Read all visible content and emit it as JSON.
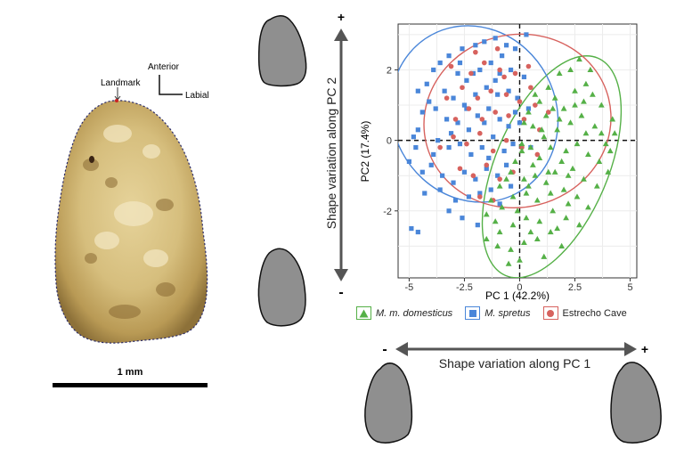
{
  "tooth": {
    "landmark_label": "Landmark",
    "anterior_label": "Anterior",
    "labial_label": "Labial",
    "scale_bar_label": "1 mm"
  },
  "axes_arrows": {
    "pc2_text": "Shape variation along PC 2",
    "pc1_text": "Shape variation along PC 1",
    "plus_sign": "+",
    "minus_sign": "-"
  },
  "chart_data": {
    "type": "scatter",
    "xlabel": "PC 1 (42.2%)",
    "ylabel": "PC2 (17.4%)",
    "xlim": [
      -5.5,
      5.3
    ],
    "ylim": [
      -3.9,
      3.3
    ],
    "xticks": [
      -5,
      -2.5,
      0,
      2.5,
      5
    ],
    "yticks": [
      -2,
      0,
      2
    ],
    "xtick_labels": [
      "-5",
      "-2.5",
      "0",
      "2.5",
      "5"
    ],
    "ytick_labels": [
      "-2",
      "0",
      "2"
    ],
    "grid": true,
    "reference_lines": {
      "x": 0,
      "y": 0,
      "style": "dashed"
    },
    "legend_position": "bottom",
    "series": [
      {
        "name": "M. m. domesticus",
        "marker": "triangle",
        "color": "#55b047",
        "ellipse": {
          "cx": 1.45,
          "cy": -0.75,
          "rx": 2.55,
          "ry": 3.35,
          "angle_deg": 23
        },
        "points": [
          [
            0.4,
            0.8
          ],
          [
            0.9,
            1.1
          ],
          [
            1.3,
            1.5
          ],
          [
            1.8,
            1.9
          ],
          [
            2.3,
            2.0
          ],
          [
            2.7,
            2.3
          ],
          [
            3.2,
            2.0
          ],
          [
            3.0,
            1.6
          ],
          [
            2.5,
            1.4
          ],
          [
            1.2,
            0.7
          ],
          [
            0.6,
            0.4
          ],
          [
            1.6,
            1.2
          ],
          [
            2.0,
            0.9
          ],
          [
            3.3,
            1.3
          ],
          [
            3.7,
            1.0
          ],
          [
            4.2,
            0.6
          ],
          [
            4.3,
            0.2
          ],
          [
            3.9,
            -0.1
          ],
          [
            3.4,
            0.4
          ],
          [
            2.8,
            0.7
          ],
          [
            2.3,
            0.5
          ],
          [
            1.7,
            0.3
          ],
          [
            1.1,
            0.1
          ],
          [
            0.5,
            -0.2
          ],
          [
            0.1,
            -0.3
          ],
          [
            0.9,
            -0.5
          ],
          [
            1.4,
            -0.2
          ],
          [
            2.1,
            -0.3
          ],
          [
            2.6,
            -0.1
          ],
          [
            3.1,
            -0.4
          ],
          [
            3.6,
            -0.6
          ],
          [
            4.0,
            -0.9
          ],
          [
            3.5,
            -1.3
          ],
          [
            2.9,
            -1.1
          ],
          [
            2.4,
            -0.8
          ],
          [
            1.9,
            -0.6
          ],
          [
            1.3,
            -0.9
          ],
          [
            0.7,
            -1.0
          ],
          [
            0.2,
            -1.1
          ],
          [
            -0.4,
            -0.9
          ],
          [
            -0.9,
            -1.3
          ],
          [
            -1.3,
            -1.7
          ],
          [
            -1.5,
            -2.1
          ],
          [
            -0.8,
            -1.9
          ],
          [
            -0.3,
            -1.6
          ],
          [
            0.3,
            -1.5
          ],
          [
            0.8,
            -1.7
          ],
          [
            1.4,
            -1.5
          ],
          [
            2.0,
            -1.4
          ],
          [
            2.6,
            -1.6
          ],
          [
            3.1,
            -1.9
          ],
          [
            2.7,
            -2.4
          ],
          [
            2.1,
            -2.2
          ],
          [
            1.5,
            -2.0
          ],
          [
            0.9,
            -2.3
          ],
          [
            0.3,
            -2.2
          ],
          [
            -0.3,
            -2.4
          ],
          [
            -0.9,
            -2.6
          ],
          [
            -1.5,
            -2.8
          ],
          [
            -1.0,
            -3.0
          ],
          [
            -0.4,
            -3.1
          ],
          [
            0.2,
            -2.9
          ],
          [
            0.8,
            -2.8
          ],
          [
            1.4,
            -2.6
          ],
          [
            1.9,
            -3.0
          ],
          [
            0.0,
            -3.4
          ],
          [
            1.1,
            -3.3
          ],
          [
            -0.5,
            -3.5
          ],
          [
            1.6,
            -0.9
          ],
          [
            2.2,
            -1.0
          ],
          [
            0.6,
            -0.7
          ],
          [
            1.0,
            0.3
          ],
          [
            0.2,
            0.5
          ],
          [
            -0.2,
            -0.6
          ],
          [
            1.8,
            0.6
          ],
          [
            2.5,
            1.0
          ],
          [
            3.0,
            0.2
          ],
          [
            2.2,
            -1.8
          ],
          [
            1.2,
            -1.2
          ],
          [
            -0.1,
            -2.0
          ],
          [
            0.5,
            -2.6
          ],
          [
            0.1,
            -0.1
          ],
          [
            0.7,
            1.3
          ],
          [
            1.5,
            0.9
          ],
          [
            2.9,
            1.1
          ],
          [
            3.7,
            0.2
          ],
          [
            4.1,
            -0.3
          ],
          [
            -1.1,
            -2.3
          ],
          [
            1.7,
            -2.5
          ],
          [
            0.4,
            -1.3
          ],
          [
            -0.6,
            -1.1
          ]
        ]
      },
      {
        "name": "M. spretus",
        "marker": "square",
        "color": "#4a86d9",
        "ellipse": {
          "cx": -2.05,
          "cy": 0.75,
          "rx": 3.7,
          "ry": 2.55,
          "angle_deg": -28
        },
        "points": [
          [
            -4.9,
            -2.5
          ],
          [
            -4.6,
            -2.6
          ],
          [
            -4.3,
            -1.5
          ],
          [
            -5.0,
            -0.6
          ],
          [
            -4.7,
            -0.2
          ],
          [
            -4.6,
            0.3
          ],
          [
            -4.4,
            0.8
          ],
          [
            -4.6,
            1.4
          ],
          [
            -4.2,
            1.6
          ],
          [
            -3.9,
            2.0
          ],
          [
            -3.6,
            2.2
          ],
          [
            -3.2,
            2.4
          ],
          [
            -2.6,
            2.6
          ],
          [
            -2.0,
            2.7
          ],
          [
            -1.6,
            2.8
          ],
          [
            -1.1,
            2.9
          ],
          [
            -0.6,
            2.7
          ],
          [
            -0.2,
            2.6
          ],
          [
            0.3,
            3.0
          ],
          [
            -2.8,
            1.9
          ],
          [
            -2.4,
            1.7
          ],
          [
            -1.8,
            2.0
          ],
          [
            -1.3,
            2.2
          ],
          [
            -0.9,
            1.9
          ],
          [
            -0.4,
            2.0
          ],
          [
            -3.4,
            1.4
          ],
          [
            -3.0,
            1.2
          ],
          [
            -2.5,
            1.0
          ],
          [
            -2.0,
            1.3
          ],
          [
            -1.5,
            1.5
          ],
          [
            -1.0,
            1.3
          ],
          [
            -0.5,
            1.4
          ],
          [
            -0.1,
            1.2
          ],
          [
            -3.8,
            0.9
          ],
          [
            -3.3,
            0.6
          ],
          [
            -2.8,
            0.5
          ],
          [
            -2.3,
            0.3
          ],
          [
            -1.9,
            0.7
          ],
          [
            -1.4,
            0.9
          ],
          [
            -0.9,
            0.6
          ],
          [
            -0.5,
            0.4
          ],
          [
            0.0,
            0.5
          ],
          [
            0.4,
            0.9
          ],
          [
            -3.7,
            0.0
          ],
          [
            -3.2,
            -0.2
          ],
          [
            -2.7,
            -0.1
          ],
          [
            -2.2,
            -0.4
          ],
          [
            -1.7,
            -0.2
          ],
          [
            -1.2,
            0.1
          ],
          [
            -0.7,
            -0.3
          ],
          [
            -0.3,
            -0.1
          ],
          [
            0.5,
            -0.2
          ],
          [
            -4.0,
            -0.7
          ],
          [
            -3.5,
            -1.0
          ],
          [
            -3.0,
            -1.2
          ],
          [
            -2.5,
            -0.9
          ],
          [
            -2.0,
            -1.1
          ],
          [
            -1.5,
            -0.8
          ],
          [
            -1.0,
            -1.0
          ],
          [
            -0.6,
            -0.7
          ],
          [
            -2.9,
            -1.7
          ],
          [
            -2.3,
            -1.6
          ],
          [
            -1.8,
            -1.5
          ],
          [
            -1.3,
            -1.4
          ],
          [
            -3.2,
            -2.0
          ],
          [
            -2.6,
            -2.2
          ],
          [
            -1.9,
            -2.4
          ],
          [
            -0.9,
            -1.8
          ],
          [
            -4.8,
            0.1
          ],
          [
            -4.1,
            1.1
          ],
          [
            -1.6,
            0.5
          ],
          [
            -2.1,
            1.9
          ],
          [
            -0.8,
            2.4
          ],
          [
            0.2,
            1.8
          ],
          [
            -3.6,
            -1.4
          ],
          [
            -0.4,
            -1.3
          ],
          [
            -2.4,
            0.9
          ],
          [
            -1.1,
            1.7
          ],
          [
            -3.9,
            -0.4
          ],
          [
            -2.7,
            2.2
          ],
          [
            -1.4,
            -0.5
          ],
          [
            -0.2,
            0.8
          ],
          [
            -3.1,
            0.2
          ],
          [
            -4.4,
            -0.9
          ]
        ]
      },
      {
        "name": "Estrecho Cave",
        "marker": "circle",
        "color": "#d7625e",
        "ellipse": {
          "cx": -0.1,
          "cy": 0.55,
          "rx": 4.25,
          "ry": 2.45,
          "angle_deg": -14
        },
        "points": [
          [
            -3.1,
            2.1
          ],
          [
            -2.2,
            1.9
          ],
          [
            -1.6,
            2.2
          ],
          [
            -0.9,
            2.0
          ],
          [
            -0.2,
            1.9
          ],
          [
            0.4,
            2.1
          ],
          [
            -2.6,
            1.5
          ],
          [
            -1.9,
            1.2
          ],
          [
            -1.3,
            1.4
          ],
          [
            -0.6,
            1.3
          ],
          [
            0.0,
            1.1
          ],
          [
            0.7,
            1.0
          ],
          [
            -2.9,
            0.6
          ],
          [
            -2.3,
            0.9
          ],
          [
            -1.7,
            0.6
          ],
          [
            -1.1,
            0.8
          ],
          [
            -0.5,
            0.7
          ],
          [
            0.2,
            0.6
          ],
          [
            0.9,
            0.3
          ],
          [
            -3.6,
            -0.2
          ],
          [
            -3.0,
            0.1
          ],
          [
            -2.4,
            -0.1
          ],
          [
            -1.8,
            0.2
          ],
          [
            -1.2,
            -0.3
          ],
          [
            -0.6,
            0.0
          ],
          [
            0.1,
            -0.2
          ],
          [
            0.8,
            -0.4
          ],
          [
            -2.7,
            -0.8
          ],
          [
            -2.1,
            -1.0
          ],
          [
            -1.5,
            -0.7
          ],
          [
            -0.9,
            -1.1
          ],
          [
            -0.3,
            -0.9
          ],
          [
            -1.8,
            -1.6
          ],
          [
            -1.2,
            -1.7
          ],
          [
            1.3,
            0.8
          ],
          [
            -3.3,
            1.2
          ],
          [
            -0.7,
            1.8
          ],
          [
            0.5,
            1.5
          ],
          [
            -2.0,
            2.5
          ],
          [
            -1.0,
            2.6
          ]
        ]
      }
    ]
  },
  "shape_thumbnails": {
    "fill": "#8f8f8f",
    "stroke": "#111111"
  }
}
